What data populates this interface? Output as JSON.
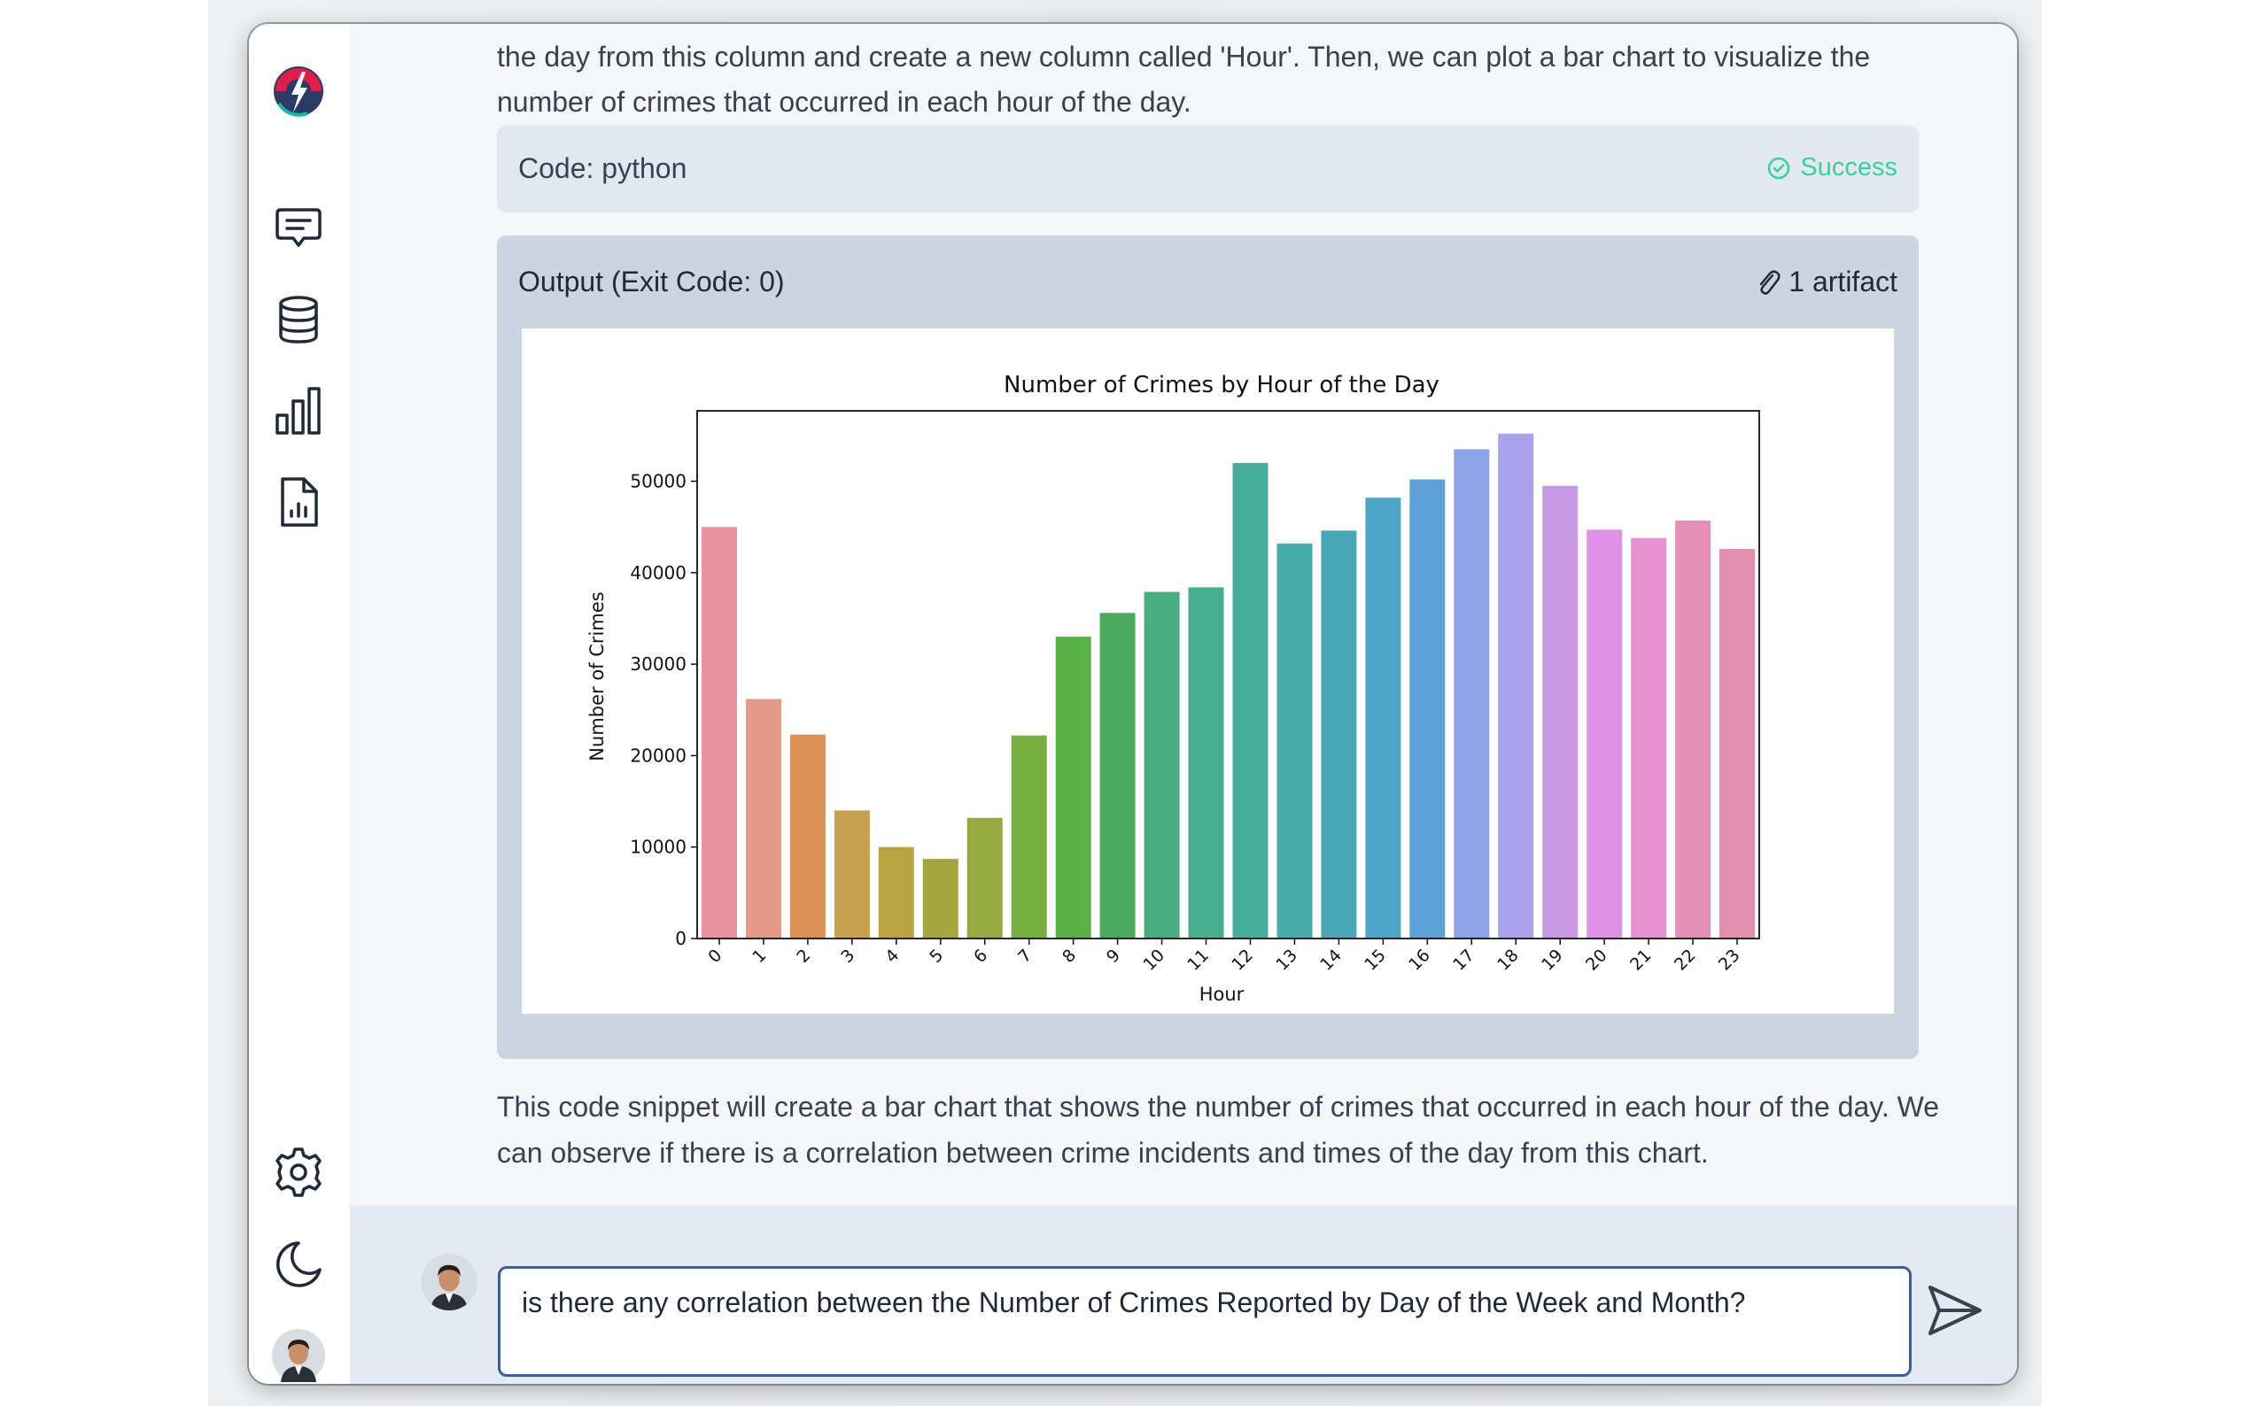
{
  "app": {
    "accent_color": "#3b5e9e",
    "sidebar_icons": [
      "app-logo-icon",
      "chat-icon",
      "database-icon",
      "bar-chart-icon",
      "report-icon",
      "settings-icon",
      "moon-icon",
      "user-avatar"
    ]
  },
  "messages": {
    "intro": "the day from this column and create a new column called 'Hour'. Then, we can plot a bar chart to visualize the number of crimes that occurred in each hour of the day.",
    "code_block": {
      "label": "Code: python",
      "status": "Success",
      "status_color": "#34d399"
    },
    "output_block": {
      "label": "Output (Exit Code: 0)",
      "artifacts": "1 artifact"
    },
    "summary": "This code snippet will create a bar chart that shows the number of crimes that occurred in each hour of the day. We can observe if there is a correlation between crime incidents and times of the day from this chart."
  },
  "chart_data": {
    "type": "bar",
    "title": "Number of Crimes by Hour of the Day",
    "xlabel": "Hour",
    "ylabel": "Number of Crimes",
    "categories": [
      "0",
      "1",
      "2",
      "3",
      "4",
      "5",
      "6",
      "7",
      "8",
      "9",
      "10",
      "11",
      "12",
      "13",
      "14",
      "15",
      "16",
      "17",
      "18",
      "19",
      "20",
      "21",
      "22",
      "23"
    ],
    "values": [
      45000,
      26200,
      22300,
      14000,
      10000,
      8700,
      13200,
      22200,
      33000,
      35600,
      37900,
      38400,
      52000,
      43200,
      44600,
      48200,
      50200,
      53500,
      55200,
      49500,
      44700,
      43800,
      45700,
      42600
    ],
    "colors": [
      "#e8939b",
      "#e39b89",
      "#dc8f52",
      "#c9a04f",
      "#b9a53f",
      "#a6a63f",
      "#96aa3f",
      "#78b03f",
      "#5ab245",
      "#4aab5e",
      "#4aad7f",
      "#49ae8e",
      "#47ad9e",
      "#47aaab",
      "#49a8b7",
      "#4ea5c6",
      "#5ba2d8",
      "#8da2e7",
      "#a9a1ea",
      "#c89ae6",
      "#de91e6",
      "#e592cf",
      "#e48fb8",
      "#e38fae"
    ],
    "yticks": [
      0,
      10000,
      20000,
      30000,
      40000,
      50000
    ],
    "ylim": [
      0,
      57700
    ],
    "grid": false,
    "legend": false
  },
  "input": {
    "value": "is there any correlation between the Number of Crimes Reported by Day of the Week and Month?"
  }
}
